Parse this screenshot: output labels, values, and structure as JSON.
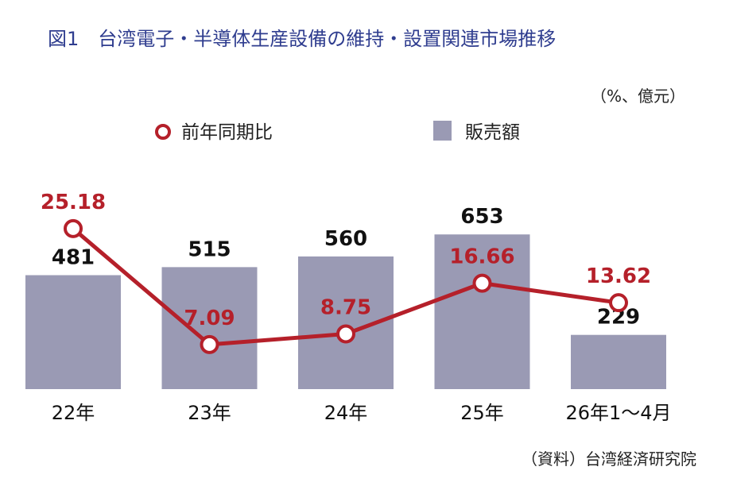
{
  "chart_data": {
    "type": "bar",
    "title": "図1　台湾電子・半導体生産設備の維持・設置関連市場推移",
    "unit": "（%、億元）",
    "categories": [
      "22年",
      "23年",
      "24年",
      "25年",
      "26年1～4月"
    ],
    "series": [
      {
        "name": "販売額",
        "type": "bar",
        "values": [
          481,
          515,
          560,
          653,
          229
        ],
        "color": "#9a9ab4"
      },
      {
        "name": "前年同期比",
        "type": "line",
        "values": [
          25.18,
          7.09,
          8.75,
          16.66,
          13.62
        ],
        "color": "#b5202a"
      }
    ],
    "bar_labels": [
      "481",
      "515",
      "560",
      "653",
      "229"
    ],
    "line_labels": [
      "25.18",
      "7.09",
      "8.75",
      "16.66",
      "13.62"
    ],
    "ylim_bar": [
      0,
      800
    ],
    "ylim_line": [
      -28,
      42
    ],
    "legend_position": "top",
    "grid": false
  },
  "source": "（資料）台湾経済研究院"
}
